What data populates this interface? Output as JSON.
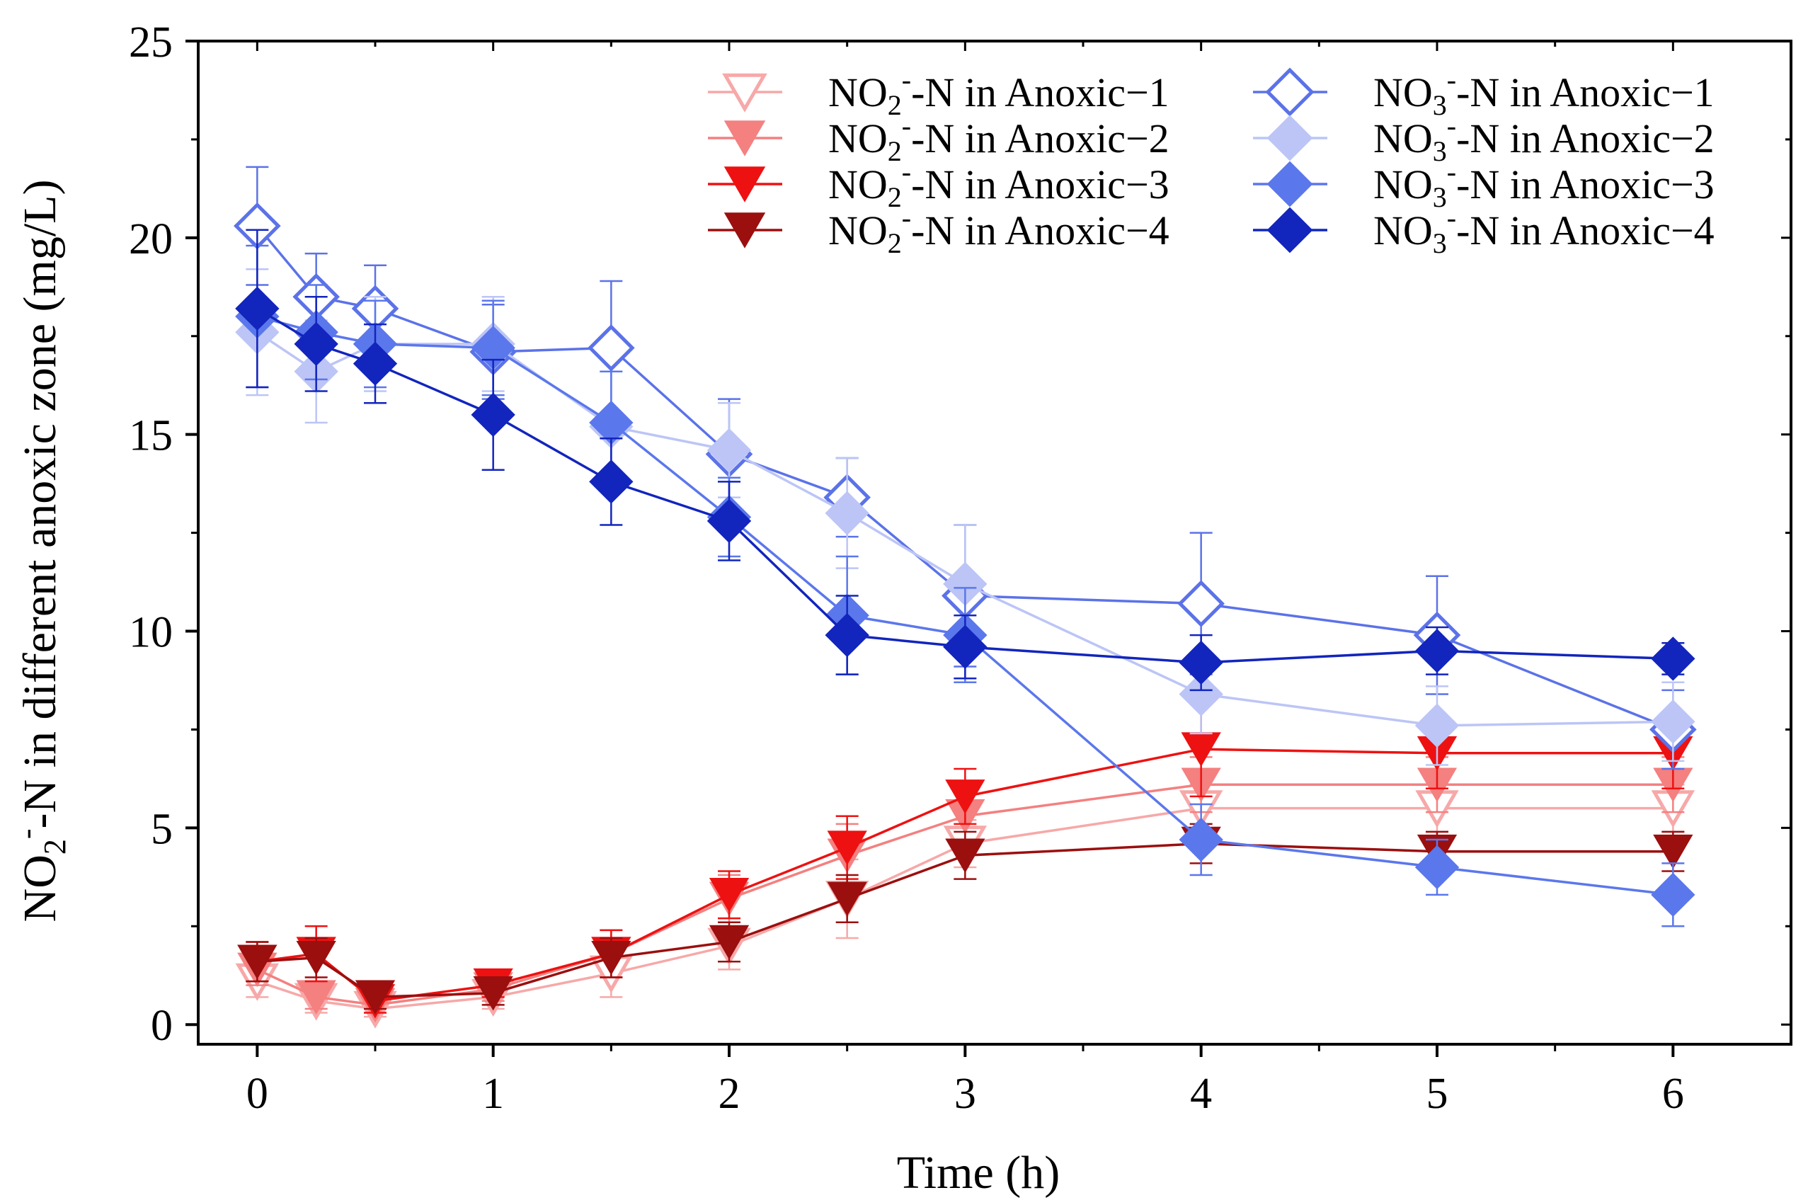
{
  "chart_data": {
    "type": "line",
    "title": "",
    "xlabel": "Time (h)",
    "ylabel": {
      "base1": "NO",
      "sub": "2",
      "sup": "-",
      "rest": "-N in different anoxic zone (mg/L)"
    },
    "xlim": [
      -0.25,
      6.5
    ],
    "ylim": [
      -0.5,
      25
    ],
    "xticks": [
      0,
      1,
      2,
      3,
      4,
      5,
      6
    ],
    "yticks": [
      0,
      5,
      10,
      15,
      20,
      25
    ],
    "x": [
      0,
      0.25,
      0.5,
      1,
      1.5,
      2,
      2.5,
      3,
      4,
      5,
      6
    ],
    "legend_position": "top-right",
    "series": [
      {
        "id": "no2-1",
        "species": "NO",
        "sub": "2",
        "name": "-N in Anoxic−1",
        "marker": "triangle-down",
        "filled": false,
        "color": "#f7a8a8",
        "values": [
          1.1,
          0.6,
          0.4,
          0.7,
          1.3,
          2.0,
          3.2,
          4.6,
          5.5,
          5.5,
          5.5
        ],
        "errors": [
          0.4,
          0.3,
          0.2,
          0.3,
          0.6,
          0.6,
          1.0,
          0.6,
          0.6,
          0.6,
          0.6
        ]
      },
      {
        "id": "no2-2",
        "species": "NO",
        "sub": "2",
        "name": "-N in Anoxic−2",
        "marker": "triangle-down",
        "filled": true,
        "color": "#f48080",
        "values": [
          1.4,
          0.7,
          0.5,
          0.9,
          1.8,
          3.2,
          4.3,
          5.3,
          6.1,
          6.1,
          6.1
        ],
        "errors": [
          0.4,
          0.3,
          0.2,
          0.3,
          0.6,
          0.6,
          0.8,
          0.6,
          0.7,
          0.7,
          0.7
        ]
      },
      {
        "id": "no2-3",
        "species": "NO",
        "sub": "2",
        "name": "-N in Anoxic−3",
        "marker": "triangle-down",
        "filled": true,
        "color": "#ee1111",
        "values": [
          1.6,
          1.8,
          0.6,
          1.0,
          1.8,
          3.3,
          4.5,
          5.8,
          7.0,
          6.9,
          6.9
        ],
        "errors": [
          0.5,
          0.7,
          0.3,
          0.3,
          0.6,
          0.6,
          0.8,
          0.7,
          1.2,
          0.9,
          0.9
        ]
      },
      {
        "id": "no2-4",
        "species": "NO",
        "sub": "2",
        "name": "-N in Anoxic−4",
        "marker": "triangle-down",
        "filled": true,
        "color": "#9b0f0f",
        "values": [
          1.6,
          1.7,
          0.7,
          0.8,
          1.7,
          2.1,
          3.2,
          4.3,
          4.6,
          4.4,
          4.4
        ],
        "errors": [
          0.5,
          0.5,
          0.3,
          0.3,
          0.5,
          0.5,
          0.6,
          0.6,
          0.5,
          0.5,
          0.5
        ]
      },
      {
        "id": "no3-1",
        "species": "NO",
        "sub": "3",
        "name": "-N in Anoxic−1",
        "marker": "diamond",
        "filled": false,
        "color": "#5b72e8",
        "values": [
          20.3,
          18.5,
          18.2,
          17.1,
          17.2,
          14.5,
          13.4,
          10.9,
          10.7,
          9.9,
          7.5
        ],
        "errors": [
          1.5,
          1.1,
          1.1,
          1.2,
          1.7,
          1.4,
          1.0,
          1.8,
          1.8,
          1.5,
          1.0
        ]
      },
      {
        "id": "no3-2",
        "species": "NO",
        "sub": "3",
        "name": "-N in Anoxic−2",
        "marker": "diamond",
        "filled": true,
        "color": "#bcc5f6",
        "values": [
          17.6,
          16.6,
          17.3,
          17.3,
          15.2,
          14.6,
          13.0,
          11.2,
          8.4,
          7.6,
          7.7
        ],
        "errors": [
          1.6,
          1.3,
          1.2,
          1.2,
          1.4,
          1.2,
          1.4,
          1.5,
          1.0,
          1.0,
          1.0
        ]
      },
      {
        "id": "no3-3",
        "species": "NO",
        "sub": "3",
        "name": "-N in Anoxic−3",
        "marker": "diamond",
        "filled": true,
        "color": "#5b77ec",
        "values": [
          18.0,
          17.6,
          17.3,
          17.2,
          15.3,
          12.9,
          10.4,
          9.9,
          4.7,
          4.0,
          3.3
        ],
        "errors": [
          1.8,
          1.2,
          1.1,
          1.2,
          1.3,
          1.0,
          1.5,
          1.2,
          0.9,
          0.7,
          0.8
        ]
      },
      {
        "id": "no3-4",
        "species": "NO",
        "sub": "3",
        "name": "-N in Anoxic−4",
        "marker": "diamond",
        "filled": true,
        "color": "#1225bd",
        "values": [
          18.2,
          17.3,
          16.8,
          15.5,
          13.8,
          12.8,
          9.9,
          9.6,
          9.2,
          9.5,
          9.3
        ],
        "errors": [
          2.0,
          1.2,
          1.0,
          1.4,
          1.1,
          1.0,
          1.0,
          0.8,
          0.7,
          0.6,
          0.4
        ]
      }
    ]
  }
}
